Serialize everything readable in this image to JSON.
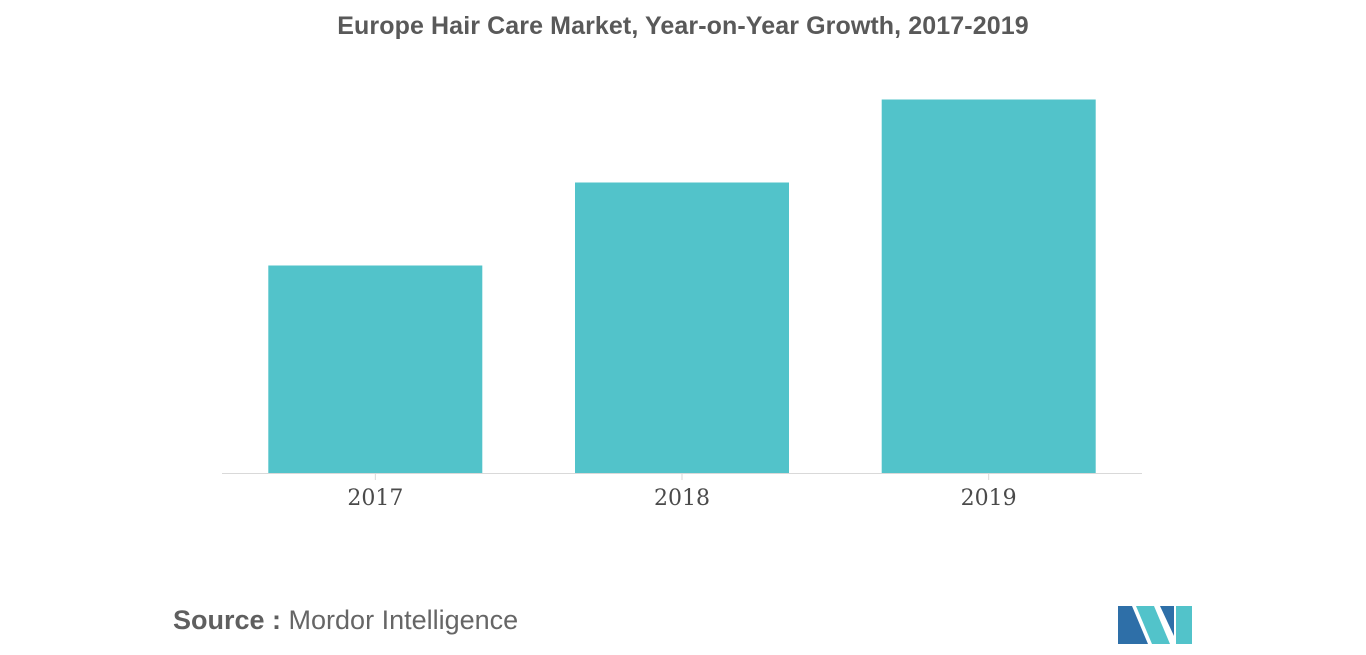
{
  "chart_data": {
    "type": "bar",
    "title": "Europe Hair Care Market, Year-on-Year Growth, 2017-2019",
    "categories": [
      "2017",
      "2018",
      "2019"
    ],
    "values": [
      2.5,
      3.5,
      4.5
    ],
    "ylim": [
      0,
      5
    ],
    "xlabel": "",
    "ylabel": "",
    "grid": false,
    "legend": "none",
    "bar_color": "#52C3CA"
  },
  "source": {
    "label": "Source :",
    "text": "Mordor Intelligence"
  },
  "logo": {
    "icon": "mordor-intelligence-logo",
    "colors": [
      "#2E6FA8",
      "#52C3CA"
    ]
  }
}
